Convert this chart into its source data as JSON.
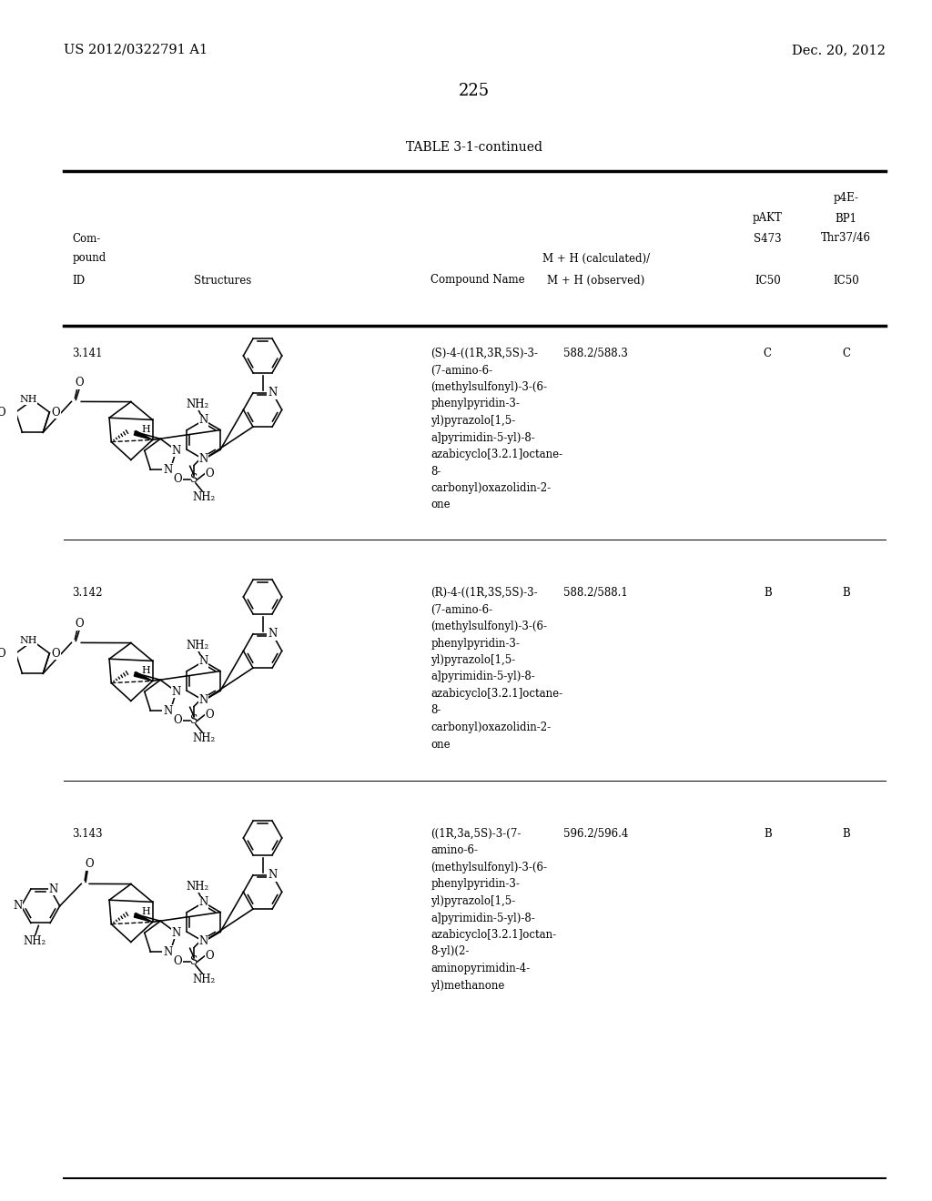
{
  "patent_number": "US 2012/0322791 A1",
  "patent_date": "Dec. 20, 2012",
  "page_number": "225",
  "table_title": "TABLE 3-1-continued",
  "background_color": "#ffffff",
  "rows": [
    {
      "id": "3.141",
      "compound_name_lines": [
        "(S)-4-((1R,3R,5S)-3-",
        "(7-amino-6-",
        "(methylsulfonyl)-3-(6-",
        "phenylpyridin-3-",
        "yl)pyrazolo[1,5-",
        "a]pyrimidin-5-yl)-8-",
        "azabicyclo[3.2.1]octane-",
        "8-",
        "carbonyl)oxazolidin-2-",
        "one"
      ],
      "mh": "588.2/588.3",
      "pakt": "C",
      "p4ebp1": "C"
    },
    {
      "id": "3.142",
      "compound_name_lines": [
        "(R)-4-((1R,3S,5S)-3-",
        "(7-amino-6-",
        "(methylsulfonyl)-3-(6-",
        "phenylpyridin-3-",
        "yl)pyrazolo[1,5-",
        "a]pyrimidin-5-yl)-8-",
        "azabicyclo[3.2.1]octane-",
        "8-",
        "carbonyl)oxazolidin-2-",
        "one"
      ],
      "mh": "588.2/588.1",
      "pakt": "B",
      "p4ebp1": "B"
    },
    {
      "id": "3.143",
      "compound_name_lines": [
        "((1R,3a,5S)-3-(7-",
        "amino-6-",
        "(methylsulfonyl)-3-(6-",
        "phenylpyridin-3-",
        "yl)pyrazolo[1,5-",
        "a]pyrimidin-5-yl)-8-",
        "azabicyclo[3.2.1]octan-",
        "8-yl)(2-",
        "aminopyrimidin-4-",
        "yl)methanone"
      ],
      "mh": "596.2/596.4",
      "pakt": "B",
      "p4ebp1": "B"
    }
  ]
}
